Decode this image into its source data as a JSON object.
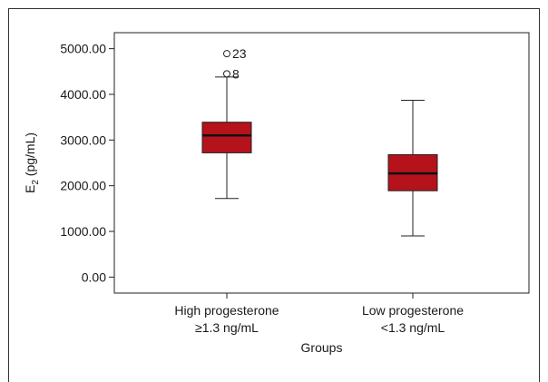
{
  "chart_data": {
    "type": "box",
    "title": "",
    "xlabel": "Groups",
    "ylabel": "E2 (pg/mL)",
    "ylabel_main": "E",
    "ylabel_sub": "2",
    "ylabel_rest": " (pg/mL)",
    "ylim": [
      -350,
      5350
    ],
    "yticks": [
      0,
      1000,
      2000,
      3000,
      4000,
      5000
    ],
    "ytick_labels": [
      "0.00",
      "1000.00",
      "2000.00",
      "3000.00",
      "4000.00",
      "5000.00"
    ],
    "grid": false,
    "box_color": "#b5121b",
    "categories": [
      {
        "label_lines": [
          "High progesterone",
          "≥1.3 ng/mL"
        ],
        "min": 1720,
        "q1": 2720,
        "median": 3100,
        "q3": 3390,
        "max": 4380,
        "outliers": [
          {
            "value": 4450,
            "label": "8"
          },
          {
            "value": 4890,
            "label": "23"
          }
        ]
      },
      {
        "label_lines": [
          "Low progesterone",
          "<1.3 ng/mL"
        ],
        "min": 900,
        "q1": 1890,
        "median": 2270,
        "q3": 2680,
        "max": 3870,
        "outliers": []
      }
    ]
  }
}
